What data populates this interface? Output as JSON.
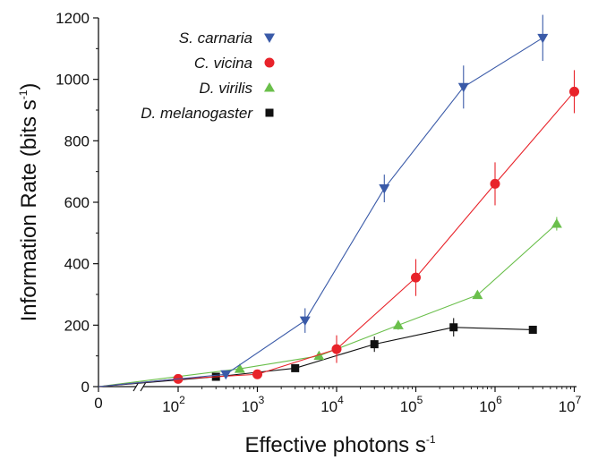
{
  "chart_data": {
    "type": "line",
    "xlabel": "Effective photons s",
    "xlabel_sup": "-1",
    "ylabel": "Information Rate (bits s",
    "ylabel_sup": "-1",
    "ylabel_close": ")",
    "x_scale": "log10 with broken axis at origin",
    "ylim": [
      0,
      1200
    ],
    "y_ticks": [
      "0",
      "200",
      "400",
      "600",
      "800",
      "1000",
      "1200"
    ],
    "x_zero_label": "0",
    "x_ticks": [
      {
        "base": "10",
        "exp": "2",
        "value": 100
      },
      {
        "base": "10",
        "exp": "3",
        "value": 1000
      },
      {
        "base": "10",
        "exp": "4",
        "value": 10000
      },
      {
        "base": "10",
        "exp": "5",
        "value": 100000
      },
      {
        "base": "10",
        "exp": "6",
        "value": 1000000
      },
      {
        "base": "10",
        "exp": "7",
        "value": 10000000
      }
    ],
    "grid": false,
    "legend_position": "top-left",
    "series": [
      {
        "name": "S. carnaria",
        "color": "#3a5aa8",
        "marker": "triangle-down",
        "points": [
          {
            "x": 0,
            "y": 0
          },
          {
            "x": 400,
            "y": 40,
            "err": 12
          },
          {
            "x": 4000,
            "y": 215,
            "err": 40
          },
          {
            "x": 40000,
            "y": 645,
            "err": 45
          },
          {
            "x": 400000,
            "y": 975,
            "err": 70
          },
          {
            "x": 4000000,
            "y": 1135,
            "err": 75
          }
        ]
      },
      {
        "name": "C. vicina",
        "color": "#e8232a",
        "marker": "circle",
        "points": [
          {
            "x": 0,
            "y": 0
          },
          {
            "x": 100,
            "y": 25,
            "err": 8
          },
          {
            "x": 1000,
            "y": 40,
            "err": 8
          },
          {
            "x": 10000,
            "y": 122,
            "err": 45
          },
          {
            "x": 100000,
            "y": 355,
            "err": 60
          },
          {
            "x": 1000000,
            "y": 660,
            "err": 70
          },
          {
            "x": 10000000,
            "y": 960,
            "err": 70
          }
        ]
      },
      {
        "name": "D. virilis",
        "color": "#6abf4b",
        "marker": "triangle-up",
        "points": [
          {
            "x": 0,
            "y": 0
          },
          {
            "x": 600,
            "y": 58,
            "err": 8
          },
          {
            "x": 6000,
            "y": 100,
            "err": 10
          },
          {
            "x": 60000,
            "y": 200,
            "err": 15
          },
          {
            "x": 600000,
            "y": 298,
            "err": 12
          },
          {
            "x": 6000000,
            "y": 530,
            "err": 22
          }
        ]
      },
      {
        "name": "D. melanogaster",
        "color": "#111111",
        "marker": "square",
        "points": [
          {
            "x": 0,
            "y": 0
          },
          {
            "x": 300,
            "y": 32,
            "err": 8
          },
          {
            "x": 3000,
            "y": 60,
            "err": 8
          },
          {
            "x": 30000,
            "y": 138,
            "err": 25
          },
          {
            "x": 300000,
            "y": 193,
            "err": 30
          },
          {
            "x": 3000000,
            "y": 185,
            "err": 12
          }
        ]
      }
    ]
  }
}
